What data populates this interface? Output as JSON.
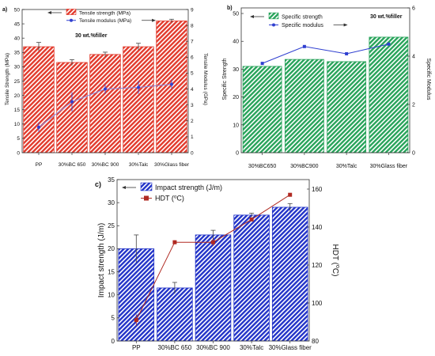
{
  "chart_data": [
    {
      "panel": "a)",
      "type": "bar",
      "annotation": "30 wt.%filler",
      "categories": [
        "PP",
        "30%BC 650",
        "30%BC 900",
        "30%Talc",
        "30%Glass fiber"
      ],
      "series": [
        {
          "name": "Tensile strength (MPa)",
          "type": "bar",
          "axis": "left",
          "values": [
            37.0,
            31.5,
            34.3,
            37.0,
            46.0
          ],
          "errors": [
            1.5,
            1.0,
            0.8,
            1.2,
            0.6
          ]
        },
        {
          "name": "Tensile modulus (MPa)",
          "type": "line",
          "axis": "right",
          "values": [
            1.6,
            3.2,
            4.0,
            4.1,
            4.3
          ],
          "errors": [
            0.3,
            0.6,
            0.3,
            0.4,
            0.3
          ]
        }
      ],
      "ylabel": "Tensile Strength (MPa)",
      "ylim": [
        0,
        50
      ],
      "y_ticks": [
        0,
        5,
        10,
        15,
        20,
        25,
        30,
        35,
        40,
        45,
        50
      ],
      "y2label": "Tensile Modulus (GPa)",
      "y2lim": [
        0,
        9
      ],
      "y2_ticks": [
        0,
        1,
        2,
        3,
        4,
        5,
        6,
        7,
        8,
        9
      ],
      "legend_placement": "top-left",
      "colors": {
        "bar": "#e23a2c",
        "line": "#2f3fd0"
      }
    },
    {
      "panel": "b)",
      "type": "bar",
      "annotation": "30 wt.%filler",
      "categories": [
        "30%BC650",
        "30%BC900",
        "30%Talc",
        "30%Glass fiber"
      ],
      "series": [
        {
          "name": "Specific strength",
          "type": "bar",
          "axis": "left",
          "values": [
            31.0,
            33.5,
            32.7,
            41.5
          ]
        },
        {
          "name": "Specific modulus",
          "type": "line",
          "axis": "right",
          "values": [
            3.7,
            4.4,
            4.1,
            4.5
          ]
        }
      ],
      "ylabel": "Specific Strength",
      "ylim": [
        0,
        52
      ],
      "y_ticks": [
        0,
        10,
        20,
        30,
        40,
        50
      ],
      "y2label": "Specific Modulus",
      "y2lim": [
        0,
        6
      ],
      "y2_ticks": [
        0,
        2,
        4,
        6
      ],
      "legend_placement": "top-left",
      "colors": {
        "bar": "#27a35a",
        "line": "#2f3fd0"
      }
    },
    {
      "panel": "c)",
      "type": "bar",
      "categories": [
        "PP",
        "30%BC 650",
        "30%BC 900",
        "30%Talc",
        "30%Glass fiber"
      ],
      "series": [
        {
          "name": "Impact strength (J/m)",
          "type": "bar",
          "axis": "left",
          "values": [
            20.0,
            11.5,
            23.0,
            27.3,
            29.0
          ],
          "errors": [
            3.0,
            1.2,
            1.0,
            0.4,
            0.8
          ]
        },
        {
          "name": "HDT (°C)",
          "legend_label": "HDT (",
          "legend_sup": "o",
          "legend_suffix": "C)",
          "type": "line",
          "axis": "right",
          "values": [
            91.0,
            132.0,
            132.0,
            144.0,
            157.0
          ],
          "errors": [
            3.0,
            1.0,
            2.0,
            1.0,
            0.5
          ]
        }
      ],
      "ylabel": "Impact strength (J/m)",
      "ylim": [
        0,
        35
      ],
      "y_ticks": [
        0,
        5,
        10,
        15,
        20,
        25,
        30,
        35
      ],
      "y2label": "HDT (°C)",
      "y2label_parts": [
        "HDT (",
        "o",
        "C)"
      ],
      "y2lim": [
        80,
        165
      ],
      "y2_ticks": [
        80,
        100,
        120,
        140,
        160
      ],
      "legend_placement": "top-left",
      "colors": {
        "bar": "#2233c8",
        "line": "#b02a22"
      }
    }
  ]
}
